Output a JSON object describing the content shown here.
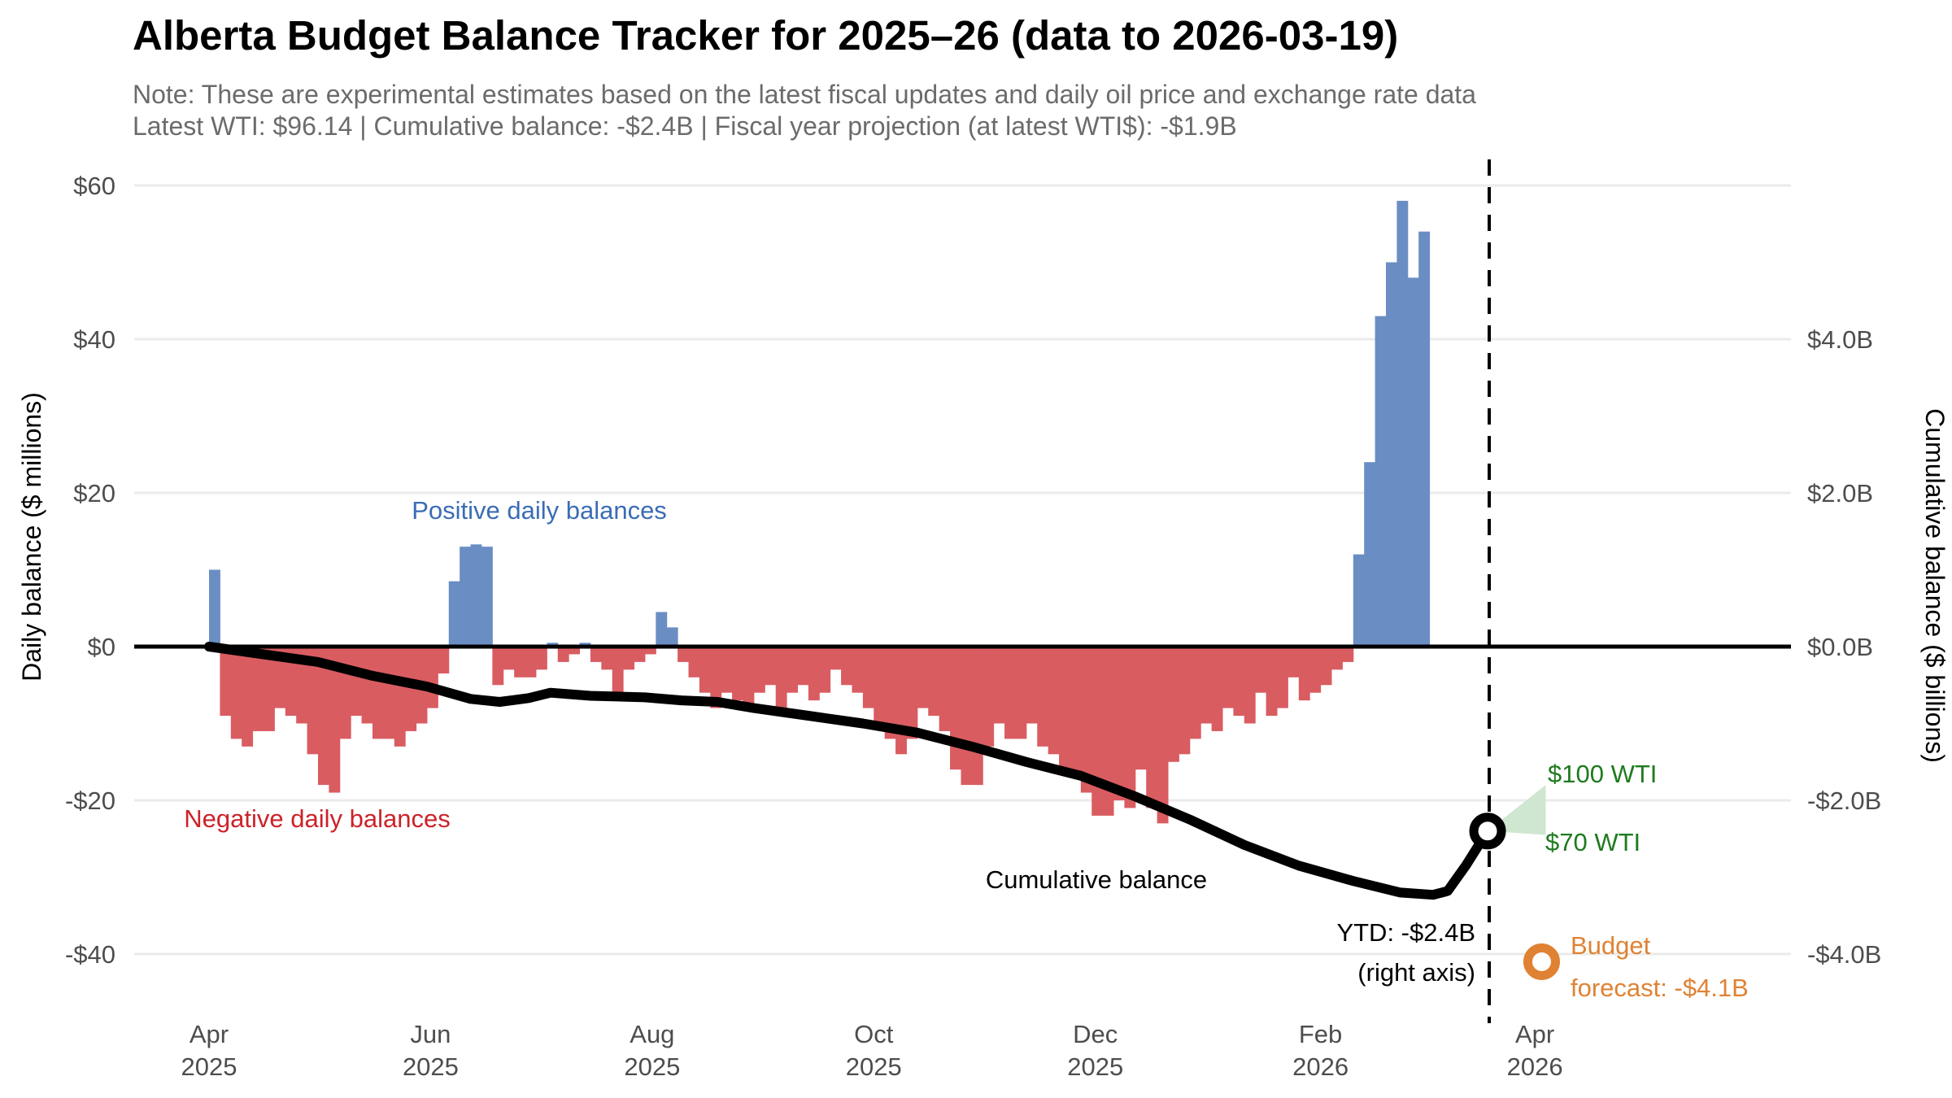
{
  "header": {
    "title": "Alberta Budget Balance Tracker for 2025–26 (data to 2026-03-19)",
    "note": "Note: These are experimental estimates based on the latest fiscal updates and daily oil price and exchange rate data",
    "summary": "Latest WTI: $96.14 | Cumulative balance: -$2.4B | Fiscal year projection (at latest WTI$): -$1.9B"
  },
  "colors": {
    "positive": "#6a8ec4",
    "negative": "#d95c61",
    "positive_label": "#3a6db5",
    "negative_label": "#cc2229",
    "cumulative": "#000000",
    "projection": "#1e7b1e",
    "projection_fill": "#cfe6d0",
    "budget": "#e08233",
    "grid": "#ebebeb",
    "axis_text": "#4d4d4d"
  },
  "chart_data": {
    "type": "bar",
    "title": "Alberta Budget Balance Tracker for 2025–26 (data to 2026-03-19)",
    "ylabel": "Daily balance ($ millions)",
    "y2label": "Cumulative balance ($ billions)",
    "ylim": [
      -46.5,
      63
    ],
    "y_ticks": [
      60,
      40,
      20,
      0,
      -20,
      -40
    ],
    "y_tick_labels": [
      "$60",
      "$40",
      "$20",
      "$0",
      "-$20",
      "-$40"
    ],
    "y2_ticks": [
      4,
      2,
      0,
      -2,
      -4
    ],
    "y2_tick_labels": [
      "$4.0B",
      "$2.0B",
      "$0.0B",
      "-$2.0B",
      "-$4.0B"
    ],
    "y2_scale_note": "right axis $B = left axis $M / 10",
    "x_start": "2025-04-01",
    "x_step_days": 3,
    "x_ticks": [
      {
        "day": 0,
        "month": "Apr",
        "year": "2025"
      },
      {
        "day": 61,
        "month": "Jun",
        "year": "2025"
      },
      {
        "day": 122,
        "month": "Aug",
        "year": "2025"
      },
      {
        "day": 183,
        "month": "Oct",
        "year": "2025"
      },
      {
        "day": 244,
        "month": "Dec",
        "year": "2025"
      },
      {
        "day": 306,
        "month": "Feb",
        "year": "2026"
      },
      {
        "day": 365,
        "month": "Apr",
        "year": "2026"
      }
    ],
    "grid": true,
    "daily_values": [
      10,
      -9,
      -12,
      -13,
      -11,
      -11,
      -8,
      -9,
      -10,
      -14,
      -18,
      -19,
      -12,
      -9,
      -10,
      -12,
      -12,
      -13,
      -11,
      -10,
      -8,
      -3.5,
      8.5,
      13,
      13.3,
      13,
      -5,
      -3,
      -4,
      -4,
      -3,
      0.5,
      -2,
      -1,
      0.5,
      -2,
      -3,
      -6,
      -3,
      -2,
      -1,
      4.5,
      2.5,
      -2,
      -4,
      -6,
      -8,
      -6,
      -7,
      -8,
      -6,
      -5,
      -8,
      -6,
      -5,
      -7,
      -6,
      -3,
      -5,
      -6,
      -8,
      -10,
      -12,
      -14,
      -12,
      -8,
      -9,
      -11,
      -16,
      -18,
      -18,
      -13,
      -10,
      -12,
      -12,
      -10,
      -13,
      -14,
      -16,
      -17,
      -19,
      -22,
      -22,
      -20,
      -21,
      -16,
      -21,
      -23,
      -15,
      -14,
      -12,
      -10,
      -11,
      -8,
      -9,
      -10,
      -6,
      -9,
      -8,
      -4,
      -7,
      -6,
      -5,
      -3,
      -2,
      12,
      24,
      43,
      50,
      58,
      48,
      54
    ],
    "cumulative_points": [
      {
        "day": 0,
        "value": 0.0
      },
      {
        "day": 15,
        "value": -0.1
      },
      {
        "day": 30,
        "value": -0.2
      },
      {
        "day": 45,
        "value": -0.38
      },
      {
        "day": 60,
        "value": -0.52
      },
      {
        "day": 72,
        "value": -0.68
      },
      {
        "day": 80,
        "value": -0.72
      },
      {
        "day": 88,
        "value": -0.67
      },
      {
        "day": 94,
        "value": -0.6
      },
      {
        "day": 105,
        "value": -0.64
      },
      {
        "day": 120,
        "value": -0.66
      },
      {
        "day": 130,
        "value": -0.7
      },
      {
        "day": 140,
        "value": -0.72
      },
      {
        "day": 150,
        "value": -0.8
      },
      {
        "day": 165,
        "value": -0.9
      },
      {
        "day": 180,
        "value": -1.0
      },
      {
        "day": 195,
        "value": -1.12
      },
      {
        "day": 210,
        "value": -1.3
      },
      {
        "day": 225,
        "value": -1.5
      },
      {
        "day": 240,
        "value": -1.68
      },
      {
        "day": 255,
        "value": -1.95
      },
      {
        "day": 270,
        "value": -2.25
      },
      {
        "day": 285,
        "value": -2.58
      },
      {
        "day": 300,
        "value": -2.85
      },
      {
        "day": 315,
        "value": -3.05
      },
      {
        "day": 328,
        "value": -3.2
      },
      {
        "day": 337,
        "value": -3.23
      },
      {
        "day": 341,
        "value": -3.18
      },
      {
        "day": 346,
        "value": -2.85
      },
      {
        "day": 352,
        "value": -2.4
      }
    ],
    "current_marker": {
      "day": 352,
      "value": -2.4
    },
    "projection_range": {
      "day": 368,
      "low_label": "$70 WTI",
      "high_label": "$100 WTI",
      "low": -2.45,
      "high": -1.8
    },
    "budget_forecast": {
      "day": 368,
      "value": -4.1
    },
    "data_cutoff_day": 352,
    "annotations": {
      "positive": "Positive daily balances",
      "negative": "Negative daily balances",
      "cumulative": "Cumulative balance",
      "ytd_line1": "YTD: -$2.4B",
      "ytd_line2": "(right axis)",
      "wti_high": "$100 WTI",
      "wti_low": "$70 WTI",
      "budget_line1": "Budget",
      "budget_line2": "forecast: -$4.1B"
    }
  }
}
